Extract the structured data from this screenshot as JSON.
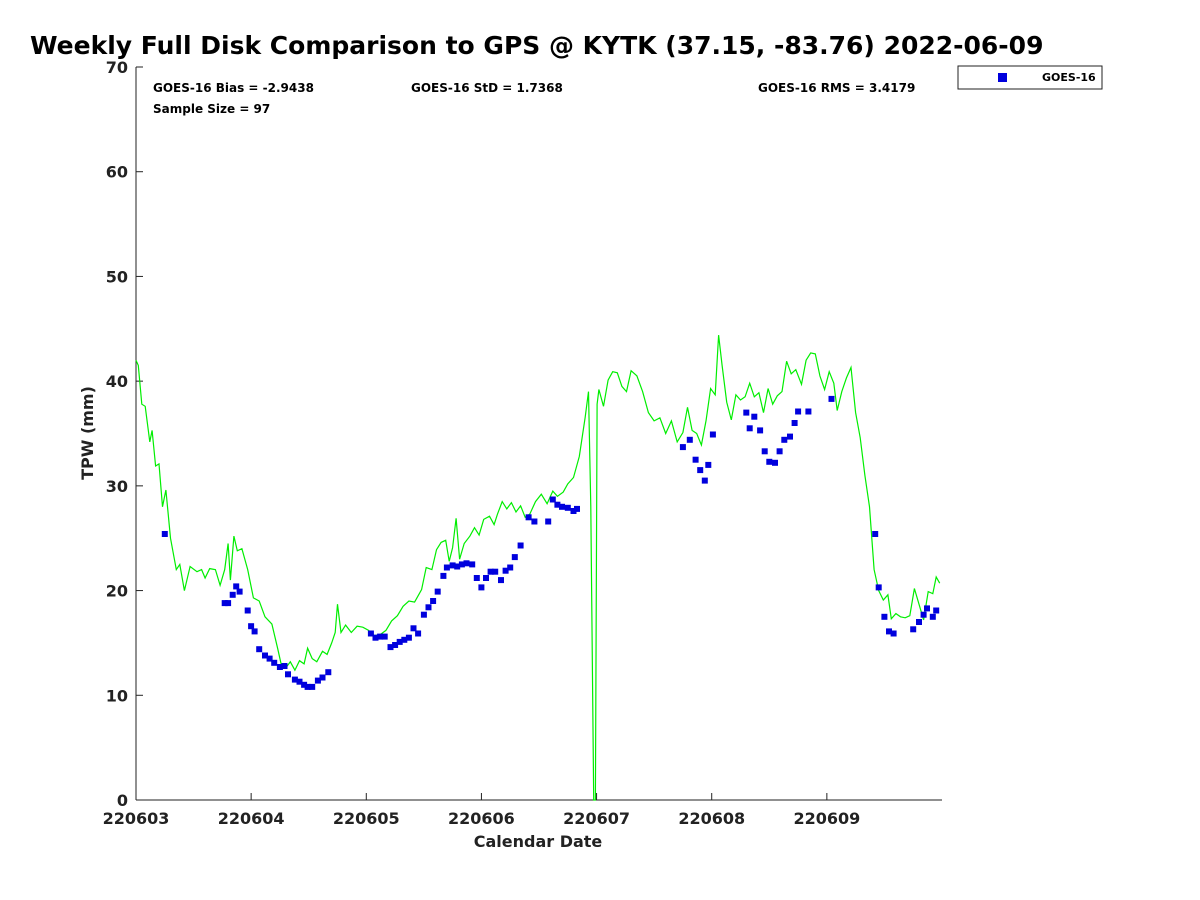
{
  "chart_data": {
    "type": "scatter",
    "title": "Weekly Full Disk Comparison to GPS @ KYTK (37.15, -83.76) 2022-06-09",
    "xlabel": "Calendar Date",
    "ylabel": "TPW (mm)",
    "xlim": [
      220603,
      220610
    ],
    "ylim": [
      0,
      70
    ],
    "x_ticks": [
      "220603",
      "220604",
      "220605",
      "220606",
      "220607",
      "220608",
      "220609"
    ],
    "y_ticks": [
      "0",
      "10",
      "20",
      "30",
      "40",
      "50",
      "60",
      "70"
    ],
    "grid": false,
    "legend": {
      "position": "top-right-outside",
      "entries": [
        "GOES-16"
      ]
    },
    "stats": {
      "bias": "GOES-16 Bias = -2.9438",
      "std": "GOES-16 StD = 1.7368",
      "rms": "GOES-16 RMS = 3.4179",
      "sample": "Sample Size = 97"
    },
    "series": [
      {
        "name": "GOES-16",
        "kind": "scatter",
        "color": "#0000dd",
        "points": [
          [
            220603.25,
            25.4
          ],
          [
            220603.77,
            18.8
          ],
          [
            220603.8,
            18.8
          ],
          [
            220603.84,
            19.6
          ],
          [
            220603.87,
            20.4
          ],
          [
            220603.9,
            19.9
          ],
          [
            220603.97,
            18.1
          ],
          [
            220604.0,
            16.6
          ],
          [
            220604.03,
            16.1
          ],
          [
            220604.07,
            14.4
          ],
          [
            220604.12,
            13.8
          ],
          [
            220604.16,
            13.5
          ],
          [
            220604.2,
            13.1
          ],
          [
            220604.25,
            12.7
          ],
          [
            220604.29,
            12.8
          ],
          [
            220604.32,
            12.0
          ],
          [
            220604.38,
            11.5
          ],
          [
            220604.42,
            11.3
          ],
          [
            220604.46,
            11.0
          ],
          [
            220604.49,
            10.8
          ],
          [
            220604.53,
            10.8
          ],
          [
            220604.58,
            11.4
          ],
          [
            220604.62,
            11.7
          ],
          [
            220604.67,
            12.2
          ],
          [
            220605.04,
            15.9
          ],
          [
            220605.08,
            15.5
          ],
          [
            220605.12,
            15.6
          ],
          [
            220605.16,
            15.6
          ],
          [
            220605.21,
            14.6
          ],
          [
            220605.25,
            14.8
          ],
          [
            220605.29,
            15.1
          ],
          [
            220605.33,
            15.3
          ],
          [
            220605.37,
            15.5
          ],
          [
            220605.41,
            16.4
          ],
          [
            220605.45,
            15.9
          ],
          [
            220605.5,
            17.7
          ],
          [
            220605.54,
            18.4
          ],
          [
            220605.58,
            19.0
          ],
          [
            220605.62,
            19.9
          ],
          [
            220605.67,
            21.4
          ],
          [
            220605.7,
            22.2
          ],
          [
            220605.75,
            22.4
          ],
          [
            220605.79,
            22.3
          ],
          [
            220605.83,
            22.5
          ],
          [
            220605.87,
            22.6
          ],
          [
            220605.92,
            22.5
          ],
          [
            220605.96,
            21.2
          ],
          [
            220606.0,
            20.3
          ],
          [
            220606.04,
            21.2
          ],
          [
            220606.08,
            21.8
          ],
          [
            220606.12,
            21.8
          ],
          [
            220606.17,
            21.0
          ],
          [
            220606.21,
            21.9
          ],
          [
            220606.25,
            22.2
          ],
          [
            220606.29,
            23.2
          ],
          [
            220606.34,
            24.3
          ],
          [
            220606.41,
            27.0
          ],
          [
            220606.46,
            26.6
          ],
          [
            220606.58,
            26.6
          ],
          [
            220606.62,
            28.7
          ],
          [
            220606.66,
            28.2
          ],
          [
            220606.7,
            28.0
          ],
          [
            220606.75,
            27.9
          ],
          [
            220606.8,
            27.6
          ],
          [
            220606.83,
            27.8
          ],
          [
            220607.75,
            33.7
          ],
          [
            220607.81,
            34.4
          ],
          [
            220607.86,
            32.5
          ],
          [
            220607.9,
            31.5
          ],
          [
            220607.94,
            30.5
          ],
          [
            220607.97,
            32.0
          ],
          [
            220608.01,
            34.9
          ],
          [
            220608.3,
            37.0
          ],
          [
            220608.33,
            35.5
          ],
          [
            220608.37,
            36.6
          ],
          [
            220608.42,
            35.3
          ],
          [
            220608.46,
            33.3
          ],
          [
            220608.5,
            32.3
          ],
          [
            220608.55,
            32.2
          ],
          [
            220608.59,
            33.3
          ],
          [
            220608.63,
            34.4
          ],
          [
            220608.68,
            34.7
          ],
          [
            220608.72,
            36.0
          ],
          [
            220608.75,
            37.1
          ],
          [
            220608.84,
            37.1
          ],
          [
            220609.04,
            38.3
          ],
          [
            220609.42,
            25.4
          ],
          [
            220609.45,
            20.3
          ],
          [
            220609.5,
            17.5
          ],
          [
            220609.54,
            16.1
          ],
          [
            220609.58,
            15.9
          ],
          [
            220609.75,
            16.3
          ],
          [
            220609.8,
            17.0
          ],
          [
            220609.84,
            17.7
          ],
          [
            220609.87,
            18.3
          ],
          [
            220609.92,
            17.5
          ],
          [
            220609.95,
            18.1
          ]
        ]
      },
      {
        "kind": "line",
        "color": "#00ee00",
        "points": [
          [
            220603.0,
            42.0
          ],
          [
            220603.02,
            41.5
          ],
          [
            220603.05,
            37.8
          ],
          [
            220603.08,
            37.6
          ],
          [
            220603.12,
            34.2
          ],
          [
            220603.14,
            35.3
          ],
          [
            220603.17,
            31.9
          ],
          [
            220603.2,
            32.1
          ],
          [
            220603.23,
            28.0
          ],
          [
            220603.26,
            29.6
          ],
          [
            220603.3,
            25.0
          ],
          [
            220603.35,
            22.0
          ],
          [
            220603.38,
            22.5
          ],
          [
            220603.42,
            20.0
          ],
          [
            220603.47,
            22.3
          ],
          [
            220603.53,
            21.8
          ],
          [
            220603.57,
            22.0
          ],
          [
            220603.6,
            21.2
          ],
          [
            220603.64,
            22.1
          ],
          [
            220603.69,
            22.0
          ],
          [
            220603.73,
            20.5
          ],
          [
            220603.77,
            22.0
          ],
          [
            220603.8,
            24.5
          ],
          [
            220603.82,
            21.0
          ],
          [
            220603.85,
            25.2
          ],
          [
            220603.88,
            23.8
          ],
          [
            220603.92,
            24.0
          ],
          [
            220603.97,
            22.0
          ],
          [
            220604.02,
            19.3
          ],
          [
            220604.07,
            19.0
          ],
          [
            220604.12,
            17.5
          ],
          [
            220604.18,
            16.8
          ],
          [
            220604.23,
            14.5
          ],
          [
            220604.26,
            13.0
          ],
          [
            220604.3,
            12.6
          ],
          [
            220604.34,
            13.2
          ],
          [
            220604.38,
            12.4
          ],
          [
            220604.42,
            13.3
          ],
          [
            220604.46,
            13.0
          ],
          [
            220604.49,
            14.5
          ],
          [
            220604.53,
            13.5
          ],
          [
            220604.57,
            13.2
          ],
          [
            220604.62,
            14.2
          ],
          [
            220604.66,
            13.9
          ],
          [
            220604.7,
            15.0
          ],
          [
            220604.73,
            16.0
          ],
          [
            220604.75,
            18.7
          ],
          [
            220604.78,
            16.0
          ],
          [
            220604.82,
            16.7
          ],
          [
            220604.87,
            16.0
          ],
          [
            220604.92,
            16.6
          ],
          [
            220604.97,
            16.5
          ],
          [
            220605.02,
            16.2
          ],
          [
            220605.07,
            15.7
          ],
          [
            220605.12,
            15.8
          ],
          [
            220605.17,
            16.2
          ],
          [
            220605.22,
            17.1
          ],
          [
            220605.27,
            17.6
          ],
          [
            220605.32,
            18.5
          ],
          [
            220605.37,
            19.0
          ],
          [
            220605.42,
            18.9
          ],
          [
            220605.48,
            20.1
          ],
          [
            220605.52,
            22.2
          ],
          [
            220605.57,
            22.0
          ],
          [
            220605.61,
            23.9
          ],
          [
            220605.65,
            24.6
          ],
          [
            220605.69,
            24.8
          ],
          [
            220605.72,
            22.8
          ],
          [
            220605.75,
            24.1
          ],
          [
            220605.78,
            26.9
          ],
          [
            220605.81,
            23.0
          ],
          [
            220605.85,
            24.5
          ],
          [
            220605.9,
            25.2
          ],
          [
            220605.94,
            26.0
          ],
          [
            220605.98,
            25.3
          ],
          [
            220606.02,
            26.8
          ],
          [
            220606.07,
            27.1
          ],
          [
            220606.11,
            26.3
          ],
          [
            220606.14,
            27.3
          ],
          [
            220606.18,
            28.5
          ],
          [
            220606.22,
            27.8
          ],
          [
            220606.26,
            28.4
          ],
          [
            220606.3,
            27.5
          ],
          [
            220606.34,
            28.1
          ],
          [
            220606.38,
            27.0
          ],
          [
            220606.42,
            27.3
          ],
          [
            220606.47,
            28.5
          ],
          [
            220606.52,
            29.2
          ],
          [
            220606.57,
            28.3
          ],
          [
            220606.62,
            29.5
          ],
          [
            220606.66,
            29.0
          ],
          [
            220606.71,
            29.4
          ],
          [
            220606.75,
            30.2
          ],
          [
            220606.8,
            30.8
          ],
          [
            220606.85,
            32.8
          ],
          [
            220606.9,
            36.5
          ],
          [
            220606.93,
            39.0
          ],
          [
            220606.95,
            28.0
          ],
          [
            220606.975,
            0.0
          ],
          [
            220606.99,
            0.0
          ],
          [
            220607.005,
            37.8
          ],
          [
            220607.02,
            39.2
          ],
          [
            220607.06,
            37.6
          ],
          [
            220607.1,
            40.1
          ],
          [
            220607.14,
            40.9
          ],
          [
            220607.18,
            40.8
          ],
          [
            220607.22,
            39.5
          ],
          [
            220607.26,
            39.0
          ],
          [
            220607.3,
            41.0
          ],
          [
            220607.35,
            40.5
          ],
          [
            220607.4,
            39.0
          ],
          [
            220607.45,
            37.0
          ],
          [
            220607.5,
            36.2
          ],
          [
            220607.55,
            36.5
          ],
          [
            220607.6,
            35.0
          ],
          [
            220607.65,
            36.2
          ],
          [
            220607.7,
            34.2
          ],
          [
            220607.75,
            35.1
          ],
          [
            220607.79,
            37.5
          ],
          [
            220607.83,
            35.3
          ],
          [
            220607.87,
            35.0
          ],
          [
            220607.91,
            33.9
          ],
          [
            220607.95,
            36.2
          ],
          [
            220607.99,
            39.3
          ],
          [
            220608.03,
            38.7
          ],
          [
            220608.06,
            44.4
          ],
          [
            220608.09,
            41.5
          ],
          [
            220608.13,
            38.0
          ],
          [
            220608.17,
            36.3
          ],
          [
            220608.21,
            38.7
          ],
          [
            220608.25,
            38.2
          ],
          [
            220608.29,
            38.5
          ],
          [
            220608.33,
            39.8
          ],
          [
            220608.37,
            38.5
          ],
          [
            220608.41,
            38.9
          ],
          [
            220608.45,
            37.0
          ],
          [
            220608.49,
            39.3
          ],
          [
            220608.53,
            37.8
          ],
          [
            220608.57,
            38.6
          ],
          [
            220608.61,
            39.0
          ],
          [
            220608.65,
            41.9
          ],
          [
            220608.69,
            40.7
          ],
          [
            220608.73,
            41.1
          ],
          [
            220608.78,
            39.7
          ],
          [
            220608.82,
            42.0
          ],
          [
            220608.86,
            42.7
          ],
          [
            220608.9,
            42.6
          ],
          [
            220608.94,
            40.5
          ],
          [
            220608.98,
            39.2
          ],
          [
            220609.02,
            40.9
          ],
          [
            220609.06,
            39.8
          ],
          [
            220609.09,
            37.2
          ],
          [
            220609.13,
            39.0
          ],
          [
            220609.17,
            40.3
          ],
          [
            220609.21,
            41.3
          ],
          [
            220609.25,
            37.0
          ],
          [
            220609.29,
            34.6
          ],
          [
            220609.33,
            31.0
          ],
          [
            220609.37,
            28.0
          ],
          [
            220609.41,
            22.0
          ],
          [
            220609.45,
            20.0
          ],
          [
            220609.49,
            19.1
          ],
          [
            220609.53,
            19.6
          ],
          [
            220609.56,
            17.3
          ],
          [
            220609.6,
            17.8
          ],
          [
            220609.64,
            17.5
          ],
          [
            220609.68,
            17.4
          ],
          [
            220609.72,
            17.6
          ],
          [
            220609.76,
            20.2
          ],
          [
            220609.8,
            18.7
          ],
          [
            220609.84,
            17.2
          ],
          [
            220609.88,
            19.9
          ],
          [
            220609.92,
            19.7
          ],
          [
            220609.95,
            21.3
          ],
          [
            220609.98,
            20.7
          ]
        ]
      }
    ]
  }
}
